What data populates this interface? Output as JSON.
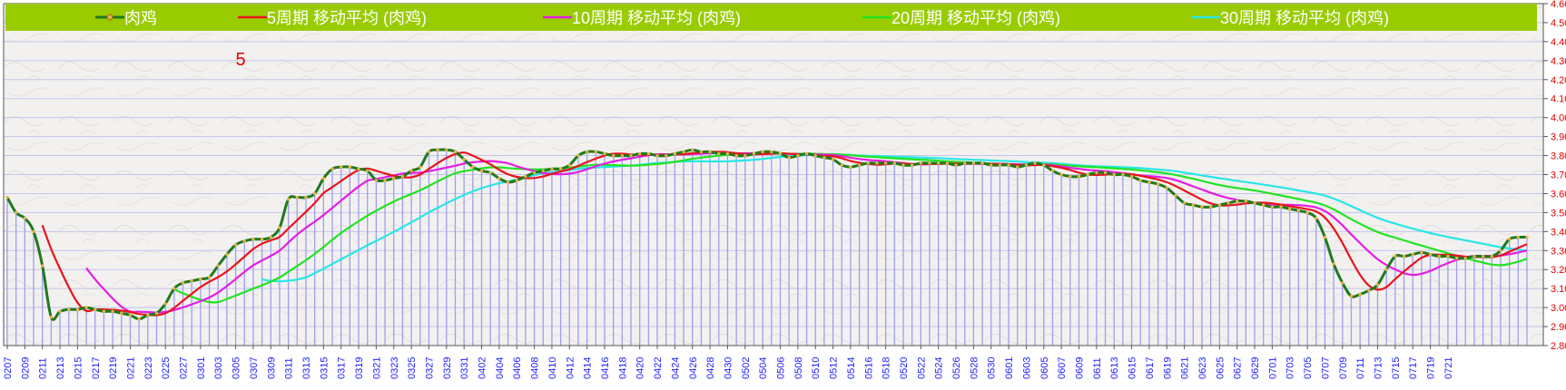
{
  "chart_data": {
    "type": "line",
    "annotation": "5",
    "ylim": [
      2.8,
      4.6
    ],
    "yticks": [
      "2.80",
      "2.90",
      "3.00",
      "3.10",
      "3.20",
      "3.30",
      "3.40",
      "3.50",
      "3.60",
      "3.70",
      "3.80",
      "3.90",
      "4.00",
      "4.10",
      "4.20",
      "4.30",
      "4.40",
      "4.50",
      "4.60"
    ],
    "x_labels": [
      "0207",
      "0209",
      "0211",
      "0213",
      "0215",
      "0217",
      "0219",
      "0221",
      "0223",
      "0225",
      "0227",
      "0301",
      "0303",
      "0305",
      "0307",
      "0309",
      "0311",
      "0313",
      "0315",
      "0317",
      "0319",
      "0321",
      "0323",
      "0325",
      "0327",
      "0329",
      "0331",
      "0402",
      "0404",
      "0406",
      "0408",
      "0410",
      "0412",
      "0414",
      "0416",
      "0418",
      "0420",
      "0422",
      "0424",
      "0426",
      "0428",
      "0430",
      "0502",
      "0504",
      "0506",
      "0508",
      "0510",
      "0512",
      "0514",
      "0516",
      "0518",
      "0520",
      "0522",
      "0524",
      "0526",
      "0528",
      "0530",
      "0601",
      "0603",
      "0605",
      "0607",
      "0609",
      "0611",
      "0613",
      "0615",
      "0617",
      "0619",
      "0621",
      "0623",
      "0625",
      "0627",
      "0629",
      "0701",
      "0703",
      "0705",
      "0707",
      "0709",
      "0711",
      "0713",
      "0715",
      "0717",
      "0719",
      "0721"
    ],
    "series": [
      {
        "name": "肉鸡",
        "color": "#1e7a1e",
        "marker_color": "#e8b24a",
        "values": [
          3.58,
          3.5,
          3.47,
          3.4,
          3.22,
          2.95,
          2.98,
          2.99,
          2.99,
          3.0,
          2.99,
          2.98,
          2.98,
          2.97,
          2.96,
          2.94,
          2.96,
          2.97,
          3.02,
          3.1,
          3.13,
          3.14,
          3.15,
          3.16,
          3.22,
          3.28,
          3.33,
          3.35,
          3.36,
          3.36,
          3.37,
          3.42,
          3.57,
          3.58,
          3.58,
          3.6,
          3.68,
          3.73,
          3.74,
          3.74,
          3.73,
          3.72,
          3.67,
          3.67,
          3.68,
          3.69,
          3.72,
          3.74,
          3.82,
          3.83,
          3.83,
          3.82,
          3.78,
          3.74,
          3.72,
          3.71,
          3.68,
          3.66,
          3.67,
          3.69,
          3.71,
          3.72,
          3.73,
          3.73,
          3.75,
          3.8,
          3.82,
          3.82,
          3.81,
          3.8,
          3.8,
          3.8,
          3.81,
          3.81,
          3.8,
          3.8,
          3.81,
          3.82,
          3.83,
          3.82,
          3.82,
          3.81,
          3.81,
          3.8,
          3.8,
          3.81,
          3.82,
          3.82,
          3.81,
          3.79,
          3.8,
          3.81,
          3.8,
          3.79,
          3.78,
          3.75,
          3.74,
          3.75,
          3.76,
          3.76,
          3.76,
          3.76,
          3.75,
          3.75,
          3.76,
          3.76,
          3.76,
          3.76,
          3.75,
          3.76,
          3.76,
          3.76,
          3.75,
          3.75,
          3.75,
          3.74,
          3.75,
          3.76,
          3.75,
          3.72,
          3.7,
          3.69,
          3.69,
          3.7,
          3.71,
          3.71,
          3.7,
          3.7,
          3.69,
          3.67,
          3.66,
          3.65,
          3.63,
          3.59,
          3.55,
          3.54,
          3.53,
          3.53,
          3.54,
          3.55,
          3.56,
          3.56,
          3.55,
          3.54,
          3.53,
          3.53,
          3.52,
          3.51,
          3.5,
          3.47,
          3.37,
          3.23,
          3.13,
          3.06,
          3.07,
          3.09,
          3.12,
          3.2,
          3.27,
          3.27,
          3.28,
          3.29,
          3.28,
          3.27,
          3.27,
          3.26,
          3.26,
          3.27,
          3.27,
          3.27,
          3.3,
          3.36,
          3.37,
          3.37
        ]
      },
      {
        "name": "5周期 移动平均 (肉鸡)",
        "color": "#e8141c",
        "ma": 5
      },
      {
        "name": "10周期 移动平均 (肉鸡)",
        "color": "#e41ee4",
        "ma": 10
      },
      {
        "name": "20周期 移动平均 (肉鸡)",
        "color": "#22e322",
        "ma": 20
      },
      {
        "name": "30周期 移动平均 (肉鸡)",
        "color": "#28e6e6",
        "ma": 30
      }
    ]
  }
}
